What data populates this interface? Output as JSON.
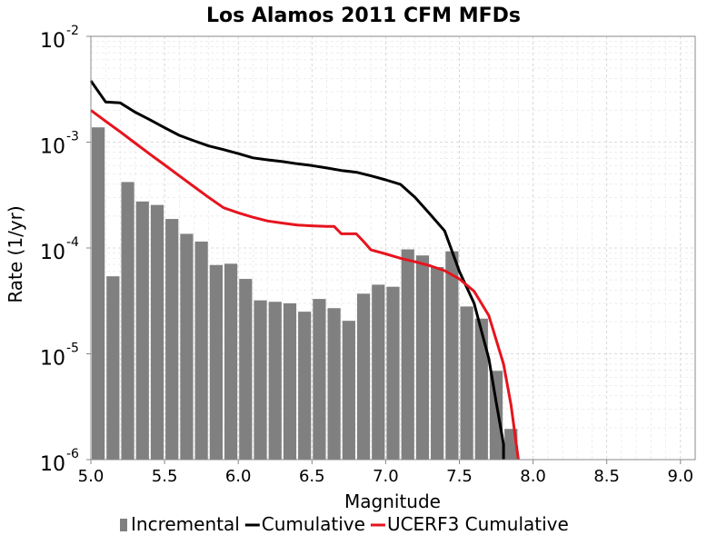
{
  "chart_data": {
    "type": "bar",
    "title": "Los Alamos 2011 CFM MFDs",
    "xlabel": "Magnitude",
    "ylabel": "Rate (1/yr)",
    "xlim": [
      5.0,
      9.1
    ],
    "ylim": [
      1e-06,
      0.01
    ],
    "yscale": "log",
    "grid": true,
    "legend_position": "bottom",
    "xticks": [
      "5.0",
      "5.5",
      "6.0",
      "6.5",
      "7.0",
      "7.5",
      "8.0",
      "8.5",
      "9.0"
    ],
    "yticks": [
      {
        "base": "10",
        "exp": "-6",
        "value": 1e-06
      },
      {
        "base": "10",
        "exp": "-5",
        "value": 1e-05
      },
      {
        "base": "10",
        "exp": "-4",
        "value": 0.0001
      },
      {
        "base": "10",
        "exp": "-3",
        "value": 0.001
      },
      {
        "base": "10",
        "exp": "-2",
        "value": 0.01
      }
    ],
    "series": [
      {
        "name": "Incremental",
        "kind": "bar",
        "color": "#808080",
        "bin_width": 0.1,
        "x": [
          5.0,
          5.1,
          5.2,
          5.3,
          5.4,
          5.5,
          5.6,
          5.7,
          5.8,
          5.9,
          6.0,
          6.1,
          6.2,
          6.3,
          6.4,
          6.5,
          6.6,
          6.7,
          6.8,
          6.9,
          7.0,
          7.1,
          7.2,
          7.3,
          7.4,
          7.5,
          7.6,
          7.7,
          7.8
        ],
        "y": [
          0.00138,
          5.4e-05,
          0.00042,
          0.000275,
          0.000255,
          0.000188,
          0.000136,
          0.000115,
          6.9e-05,
          7.1e-05,
          5.1e-05,
          3.2e-05,
          3.1e-05,
          3e-05,
          2.5e-05,
          3.3e-05,
          2.7e-05,
          2.05e-05,
          3.7e-05,
          4.5e-05,
          4.3e-05,
          9.7e-05,
          8.5e-05,
          6.6e-05,
          9.3e-05,
          2.8e-05,
          2.15e-05,
          6.9e-06,
          1.95e-06
        ]
      },
      {
        "name": "Cumulative",
        "kind": "line",
        "color": "#000000",
        "x": [
          5.0,
          5.1,
          5.2,
          5.3,
          5.4,
          5.5,
          5.6,
          5.7,
          5.8,
          5.9,
          6.0,
          6.1,
          6.2,
          6.3,
          6.4,
          6.5,
          6.6,
          6.7,
          6.8,
          6.9,
          7.0,
          7.1,
          7.2,
          7.3,
          7.4,
          7.5,
          7.6,
          7.7,
          7.75,
          7.8,
          7.8
        ],
        "y": [
          0.0038,
          0.0024,
          0.00235,
          0.00192,
          0.00163,
          0.00137,
          0.00116,
          0.00103,
          0.00092,
          0.00085,
          0.00078,
          0.00071,
          0.00068,
          0.000655,
          0.000625,
          0.0006,
          0.00057,
          0.00054,
          0.00052,
          0.00048,
          0.00044,
          0.0004,
          0.0003,
          0.00021,
          0.000145,
          6e-05,
          3e-05,
          9e-06,
          3.5e-06,
          1.4e-06,
          1e-06
        ]
      },
      {
        "name": "UCERF3 Cumulative",
        "kind": "line",
        "color": "#e6141e",
        "x": [
          5.0,
          5.1,
          5.2,
          5.3,
          5.4,
          5.5,
          5.6,
          5.7,
          5.8,
          5.9,
          6.0,
          6.1,
          6.2,
          6.3,
          6.4,
          6.5,
          6.6,
          6.65,
          6.7,
          6.75,
          6.8,
          6.85,
          6.9,
          7.0,
          7.1,
          7.2,
          7.3,
          7.4,
          7.5,
          7.6,
          7.7,
          7.8,
          7.85,
          7.9
        ],
        "y": [
          0.002,
          0.00158,
          0.00125,
          0.00098,
          0.00077,
          0.00061,
          0.00048,
          0.00038,
          0.0003,
          0.00024,
          0.000215,
          0.000195,
          0.00018,
          0.000172,
          0.000165,
          0.000162,
          0.00016,
          0.00016,
          0.000136,
          0.000136,
          0.000136,
          0.000115,
          9.6e-05,
          8.8e-05,
          8e-05,
          7.4e-05,
          6.8e-05,
          6.1e-05,
          5.1e-05,
          3.9e-05,
          2.3e-05,
          8e-06,
          3.3e-06,
          1e-06
        ]
      }
    ]
  }
}
